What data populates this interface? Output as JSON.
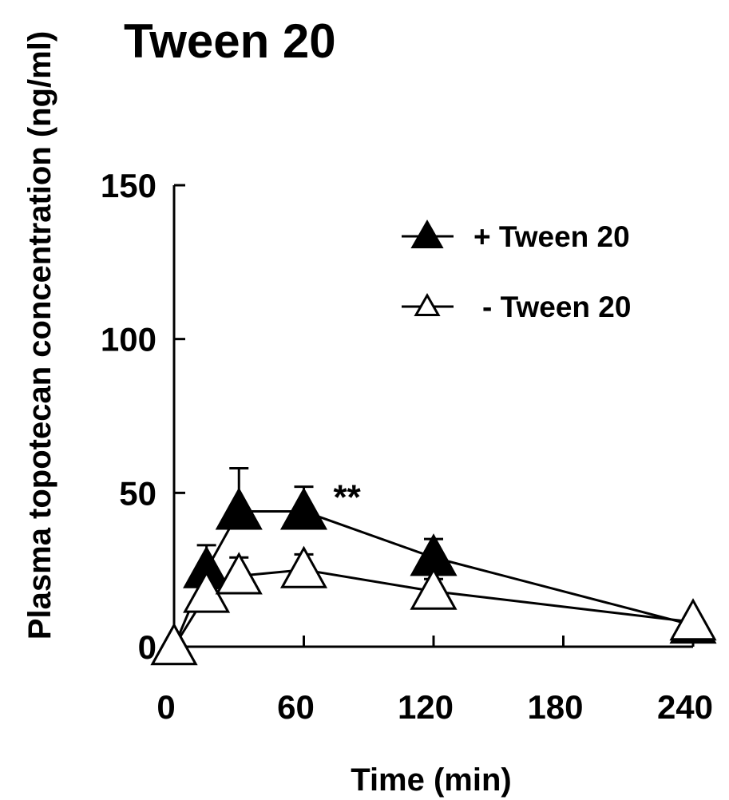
{
  "chart_data": {
    "type": "line",
    "title": "Tween 20",
    "xlabel": "Time (min)",
    "ylabel": "Plasma topotecan concentration (ng/ml)",
    "xlim": [
      0,
      240
    ],
    "ylim": [
      0,
      150
    ],
    "x_ticks": [
      "0",
      "60",
      "120",
      "180",
      "240"
    ],
    "y_ticks": [
      "0",
      "50",
      "100",
      "150"
    ],
    "legend_position": "top-right",
    "annotation": {
      "text": "**",
      "x": 60
    },
    "series": [
      {
        "name": "+ Tween 20",
        "marker": "filled-triangle",
        "color": "#000000",
        "x": [
          0,
          15,
          30,
          60,
          120,
          240
        ],
        "y": [
          0,
          25,
          44,
          44,
          29,
          7
        ],
        "error": [
          0,
          8,
          14,
          8,
          6,
          0
        ]
      },
      {
        "name": "- Tween 20",
        "marker": "open-triangle",
        "color": "#000000",
        "x": [
          0,
          15,
          30,
          60,
          120,
          240
        ],
        "y": [
          0,
          17,
          23,
          25,
          18,
          8
        ],
        "error": [
          0,
          4,
          6,
          5,
          4,
          0
        ]
      }
    ]
  }
}
